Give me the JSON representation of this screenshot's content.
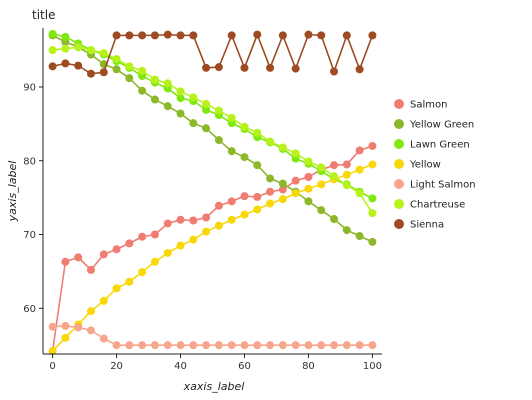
{
  "chart_data": {
    "type": "line",
    "title": "title",
    "xlabel": "xaxis_label",
    "ylabel": "yaxis_label",
    "xlim": [
      -3,
      103
    ],
    "ylim": [
      53.8,
      98
    ],
    "xticks": [
      0,
      20,
      40,
      60,
      80,
      100
    ],
    "yticks": [
      60,
      70,
      80,
      90
    ],
    "legend_position": "right",
    "x": [
      0,
      4,
      8,
      12,
      16,
      20,
      24,
      28,
      32,
      36,
      40,
      44,
      48,
      52,
      56,
      60,
      64,
      68,
      72,
      76,
      80,
      84,
      88,
      92,
      96,
      100
    ],
    "series": [
      {
        "name": "Salmon",
        "color": "#f07c72",
        "values": [
          54.2,
          66.3,
          66.9,
          65.2,
          67.3,
          68.0,
          68.8,
          69.7,
          70.0,
          71.5,
          72.0,
          71.9,
          72.3,
          73.9,
          74.5,
          75.2,
          75.1,
          75.8,
          76.1,
          77.3,
          77.8,
          78.8,
          79.4,
          79.5,
          81.4,
          82.0
        ]
      },
      {
        "name": "Yellow Green",
        "color": "#8db82a",
        "values": [
          97.0,
          96.1,
          95.4,
          94.4,
          93.1,
          92.4,
          91.2,
          89.5,
          88.3,
          87.4,
          86.4,
          85.1,
          84.4,
          82.8,
          81.3,
          80.5,
          79.4,
          77.6,
          76.9,
          75.8,
          74.5,
          73.3,
          72.1,
          70.6,
          69.8,
          69.0
        ]
      },
      {
        "name": "Lawn Green",
        "color": "#7ee80f",
        "values": [
          97.2,
          96.8,
          95.9,
          95.0,
          94.4,
          93.5,
          92.6,
          91.5,
          90.6,
          89.8,
          88.5,
          88.1,
          86.9,
          86.2,
          85.1,
          84.3,
          83.2,
          82.5,
          81.6,
          80.3,
          79.6,
          78.6,
          77.5,
          76.8,
          75.8,
          74.9
        ]
      },
      {
        "name": "Yellow",
        "color": "#f8d808",
        "values": [
          54.2,
          56.0,
          57.8,
          59.6,
          61.0,
          62.7,
          63.6,
          64.9,
          66.3,
          67.5,
          68.5,
          69.3,
          70.4,
          71.2,
          72.0,
          72.7,
          73.4,
          74.2,
          74.8,
          75.6,
          76.2,
          76.8,
          77.5,
          78.1,
          78.8,
          79.5
        ]
      },
      {
        "name": "Light Salmon",
        "color": "#f7a68e",
        "values": [
          57.5,
          57.6,
          57.4,
          57.0,
          55.9,
          55.0,
          55.0,
          55.0,
          55.0,
          55.0,
          55.0,
          55.0,
          55.0,
          55.0,
          55.0,
          55.0,
          55.0,
          55.0,
          55.0,
          55.0,
          55.0,
          55.0,
          55.0,
          55.0,
          55.0,
          55.0
        ]
      },
      {
        "name": "Chartreuse",
        "color": "#b7f21a",
        "values": [
          95.0,
          95.2,
          95.4,
          95.0,
          94.6,
          93.8,
          92.8,
          92.2,
          91.0,
          90.5,
          89.4,
          88.6,
          87.7,
          86.8,
          85.8,
          84.6,
          83.8,
          82.6,
          81.8,
          81.0,
          79.9,
          79.1,
          77.9,
          76.7,
          75.6,
          72.9
        ]
      },
      {
        "name": "Sienna",
        "color": "#9c4b22",
        "values": [
          92.8,
          93.2,
          92.9,
          91.8,
          92.0,
          97.0,
          97.0,
          97.0,
          97.0,
          97.1,
          97.0,
          97.0,
          92.6,
          92.7,
          97.0,
          92.6,
          97.1,
          92.6,
          97.0,
          92.5,
          97.1,
          97.0,
          92.1,
          97.0,
          92.4,
          97.0
        ]
      }
    ]
  }
}
